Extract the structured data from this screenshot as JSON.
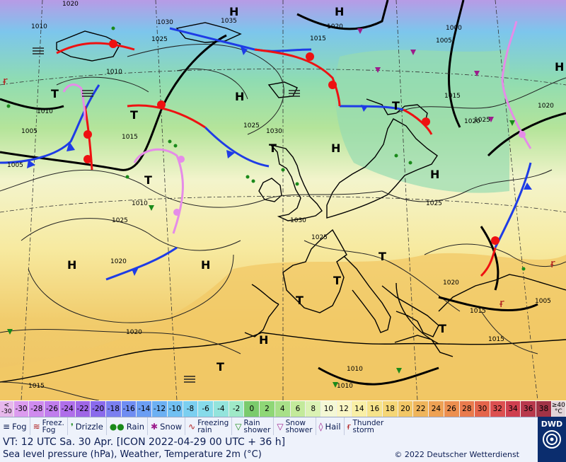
{
  "map": {
    "pressure_centers": [
      {
        "label": "H",
        "kind": "high"
      },
      {
        "label": "H",
        "kind": "high"
      },
      {
        "label": "H",
        "kind": "high"
      },
      {
        "label": "H",
        "kind": "high"
      },
      {
        "label": "H",
        "kind": "high"
      },
      {
        "label": "H",
        "kind": "high"
      },
      {
        "label": "H",
        "kind": "high"
      },
      {
        "label": "H",
        "kind": "high"
      },
      {
        "label": "H",
        "kind": "high"
      },
      {
        "label": "T",
        "kind": "low"
      },
      {
        "label": "T",
        "kind": "low"
      },
      {
        "label": "T",
        "kind": "low"
      },
      {
        "label": "T",
        "kind": "low"
      },
      {
        "label": "T",
        "kind": "low"
      },
      {
        "label": "T",
        "kind": "low"
      },
      {
        "label": "T",
        "kind": "low"
      },
      {
        "label": "T",
        "kind": "low"
      },
      {
        "label": "T",
        "kind": "low"
      },
      {
        "label": "T",
        "kind": "low"
      }
    ],
    "isobar_labels": [
      "1020",
      "1010",
      "1035",
      "1030",
      "1025",
      "1015",
      "1020",
      "1005",
      "1000",
      "1010",
      "1015",
      "1025",
      "1030",
      "1010",
      "1005",
      "1015",
      "1010",
      "1025",
      "1020",
      "1025",
      "1030",
      "1025",
      "1015",
      "1020",
      "1020",
      "1025",
      "1020",
      "1015",
      "1005",
      "1010",
      "1015",
      "1010",
      "1020",
      "1005"
    ]
  },
  "temperature_scale": {
    "unit": "°C",
    "cells": [
      {
        "label": "<\n-30",
        "color": "#e7b8ec"
      },
      {
        "label": "-30",
        "color": "#dc9bef"
      },
      {
        "label": "-28",
        "color": "#cf8bee"
      },
      {
        "label": "-26",
        "color": "#c07ded"
      },
      {
        "label": "-24",
        "color": "#af6eea"
      },
      {
        "label": "-22",
        "color": "#9f66e6"
      },
      {
        "label": "-20",
        "color": "#8a6aec"
      },
      {
        "label": "-18",
        "color": "#7b7ff0"
      },
      {
        "label": "-16",
        "color": "#6f8df2"
      },
      {
        "label": "-14",
        "color": "#6b9ef3"
      },
      {
        "label": "-12",
        "color": "#6cb0f3"
      },
      {
        "label": "-10",
        "color": "#71c0f2"
      },
      {
        "label": "-8",
        "color": "#7bcff0"
      },
      {
        "label": "-6",
        "color": "#86dbea"
      },
      {
        "label": "-4",
        "color": "#93e4dc"
      },
      {
        "label": "-2",
        "color": "#9fe9c7"
      },
      {
        "label": "0",
        "color": "#7bcb6c"
      },
      {
        "label": "2",
        "color": "#8fd776"
      },
      {
        "label": "4",
        "color": "#a8e088"
      },
      {
        "label": "6",
        "color": "#c3ea9b"
      },
      {
        "label": "8",
        "color": "#dbf2b4"
      },
      {
        "label": "10",
        "color": "#f4f8d5"
      },
      {
        "label": "12",
        "color": "#faf6c5"
      },
      {
        "label": "14",
        "color": "#f9efa6"
      },
      {
        "label": "16",
        "color": "#f6e38a"
      },
      {
        "label": "18",
        "color": "#f5d676"
      },
      {
        "label": "20",
        "color": "#f2c766"
      },
      {
        "label": "22",
        "color": "#efb55c"
      },
      {
        "label": "24",
        "color": "#eea254"
      },
      {
        "label": "26",
        "color": "#ec8f4f"
      },
      {
        "label": "28",
        "color": "#e97b4d"
      },
      {
        "label": "30",
        "color": "#e4654b"
      },
      {
        "label": "32",
        "color": "#dc5050"
      },
      {
        "label": "34",
        "color": "#cf3f4f"
      },
      {
        "label": "36",
        "color": "#b8394c"
      },
      {
        "label": "38",
        "color": "#a13346"
      },
      {
        "label": "≥40\n°C",
        "color": "#e1d4d8"
      }
    ]
  },
  "weather_legend": [
    {
      "symbol": "fog",
      "label": "Fog"
    },
    {
      "symbol": "freezing-fog",
      "label": "Freez.\nFog"
    },
    {
      "symbol": "drizzle",
      "label": "Drizzle"
    },
    {
      "symbol": "rain",
      "label": "Rain"
    },
    {
      "symbol": "snow",
      "label": "Snow"
    },
    {
      "symbol": "freezing-rain",
      "label": "Freezing\nrain"
    },
    {
      "symbol": "rain-shower",
      "label": "Rain\nshower"
    },
    {
      "symbol": "snow-shower",
      "label": "Snow\nshower"
    },
    {
      "symbol": "hail",
      "label": "Hail"
    },
    {
      "symbol": "thunderstorm",
      "label": "Thunder\nstorm"
    }
  ],
  "info": {
    "valid_time": "VT: 12 UTC Sa.  30 Apr. [ICON 2022-04-29  00 UTC + 36 h]",
    "description": "Sea level pressure (hPa), Weather, Temperature 2m (°C)",
    "copyright": "© 2022 Deutscher Wetterdienst",
    "logo_text": "DWD"
  },
  "colors": {
    "cold_front": "#1e3ce6",
    "warm_front": "#ee1111",
    "occlusion": "#e58ce8"
  }
}
